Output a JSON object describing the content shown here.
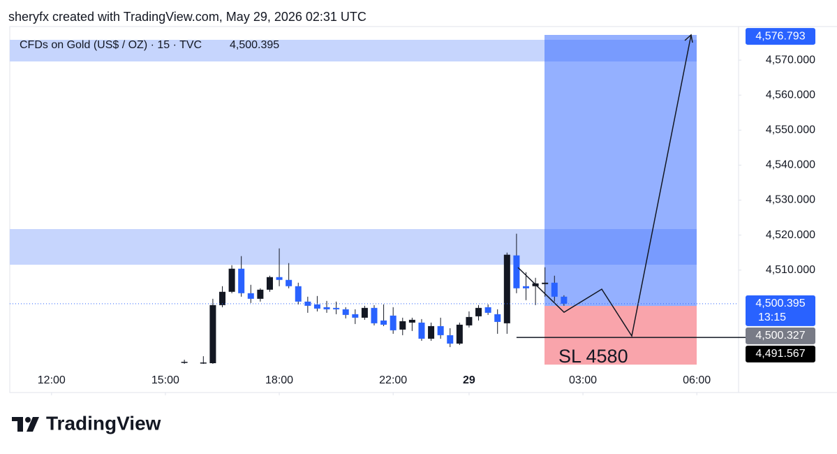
{
  "header": "sheryfx created with TradingView.com, May 29, 2026 02:31 UTC",
  "brand": "TradingView",
  "chart_data": {
    "type": "candlestick",
    "title": "CFDs on Gold (US$ / OZ) · 15 · TVC",
    "legend_price": {
      "value": 4500.395,
      "label": "4,500.395"
    },
    "annotation": "SL 4580",
    "up_color": "#131722",
    "down_color": "#2962ff",
    "x": [
      14,
      16,
      17,
      18,
      19,
      20,
      21,
      22,
      23,
      24,
      25,
      26,
      27,
      28,
      29,
      30,
      31,
      32,
      33,
      34,
      35,
      36,
      37,
      38,
      39,
      40,
      41,
      42,
      43,
      44,
      45,
      46,
      47,
      48,
      49,
      50,
      51,
      52,
      53,
      54
    ],
    "open": [
      4483.6,
      4483.4,
      4483.4,
      4500.0,
      4503.8,
      4510.4,
      4503.4,
      4501.8,
      4504.4,
      4508.0,
      4507.2,
      4505.4,
      4501.0,
      4500.2,
      4499.4,
      4499.2,
      4498.8,
      4497.4,
      4496.4,
      4499.2,
      4495.6,
      4497.0,
      4493.0,
      4495.0,
      4495.0,
      4490.4,
      4494.0,
      4491.4,
      4489.0,
      4494.2,
      4496.8,
      4499.4,
      4497.4,
      4494.8,
      4514.2,
      4505.4,
      4505.4,
      4506.0,
      4506.4,
      4502.4
    ],
    "high": [
      4484.4,
      4485.4,
      4501.8,
      4505.4,
      4511.4,
      4514.0,
      4505.8,
      4504.8,
      4508.4,
      4516.2,
      4512.0,
      4506.4,
      4502.4,
      4502.6,
      4501.2,
      4501.0,
      4499.4,
      4498.8,
      4499.8,
      4500.0,
      4500.2,
      4499.4,
      4496.4,
      4496.4,
      4496.0,
      4495.0,
      4496.4,
      4493.4,
      4495.0,
      4498.2,
      4500.0,
      4500.2,
      4498.8,
      4515.0,
      4520.4,
      4509.4,
      4507.8,
      4510.8,
      4508.4,
      4502.8
    ],
    "low": [
      4483.2,
      4483.2,
      4483.2,
      4499.4,
      4503.4,
      4502.4,
      4500.6,
      4501.0,
      4503.8,
      4505.4,
      4504.8,
      4500.2,
      4497.8,
      4498.2,
      4497.8,
      4497.4,
      4496.2,
      4494.6,
      4495.8,
      4494.2,
      4494.0,
      4491.8,
      4491.4,
      4492.6,
      4489.8,
      4489.8,
      4490.4,
      4488.0,
      4488.6,
      4493.6,
      4495.6,
      4497.2,
      4491.8,
      4491.8,
      4503.4,
      4501.4,
      4500.0,
      4502.4,
      4501.0,
      4499.8
    ],
    "close": [
      4483.8,
      4483.6,
      4500.0,
      4503.8,
      4510.4,
      4503.4,
      4501.8,
      4504.4,
      4508.0,
      4507.2,
      4505.4,
      4501.0,
      4499.8,
      4499.0,
      4498.8,
      4498.8,
      4497.2,
      4496.4,
      4499.2,
      4494.8,
      4494.4,
      4492.8,
      4495.4,
      4495.8,
      4490.4,
      4494.0,
      4491.4,
      4489.0,
      4494.4,
      4496.6,
      4499.2,
      4497.8,
      4495.2,
      4514.4,
      4504.8,
      4504.8,
      4506.2,
      4506.4,
      4502.4,
      4500.395
    ],
    "xlim": [
      -4.4,
      72.4
    ],
    "xticks": [
      {
        "value": 0,
        "label": "12:00"
      },
      {
        "value": 12,
        "label": "15:00"
      },
      {
        "value": 24,
        "label": "18:00"
      },
      {
        "value": 36,
        "label": "22:00"
      },
      {
        "value": 44,
        "label": "29"
      },
      {
        "value": 56,
        "label": "03:00"
      },
      {
        "value": 68,
        "label": "06:00"
      }
    ],
    "ylim": [
      4483.0,
      4579.6
    ],
    "yticks": [
      {
        "value": 4510,
        "label": "4,510.000"
      },
      {
        "value": 4520,
        "label": "4,520.000"
      },
      {
        "value": 4530,
        "label": "4,530.000"
      },
      {
        "value": 4540,
        "label": "4,540.000"
      },
      {
        "value": 4550,
        "label": "4,550.000"
      },
      {
        "value": 4560,
        "label": "4,560.000"
      },
      {
        "value": 4570,
        "label": "4,570.000"
      }
    ],
    "price_labels": [
      {
        "value": 4576.793,
        "label": "4,576.793",
        "color": "#2962ff"
      },
      {
        "value": 4500.395,
        "label": "4,500.395",
        "sublabel": "13:15",
        "color": "#2962ff"
      },
      {
        "value": 4500.327,
        "label": "4,500.327",
        "color": "#787b86"
      },
      {
        "value": 4491.567,
        "label": "4,491.567",
        "color": "#000000"
      }
    ]
  }
}
